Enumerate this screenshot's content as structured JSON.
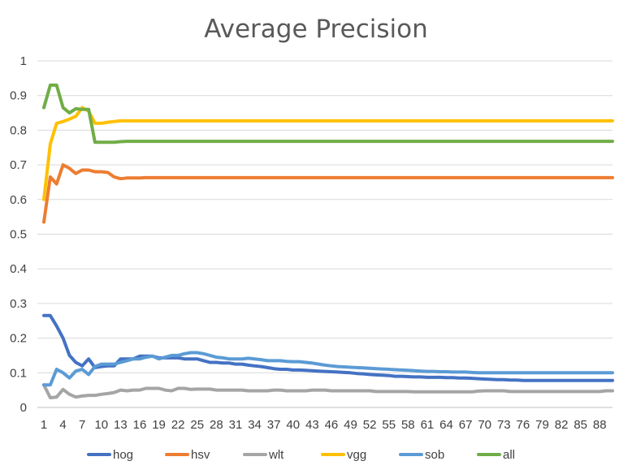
{
  "chart_data": {
    "type": "line",
    "title": "Average Precision",
    "xlabel": "",
    "ylabel": "",
    "ylim": [
      0,
      1
    ],
    "yticks": [
      "0",
      "0.1",
      "0.2",
      "0.3",
      "0.4",
      "0.5",
      "0.6",
      "0.7",
      "0.8",
      "0.9",
      "1"
    ],
    "x": [
      1,
      2,
      3,
      4,
      5,
      6,
      7,
      8,
      9,
      10,
      11,
      12,
      13,
      14,
      15,
      16,
      17,
      18,
      19,
      20,
      21,
      22,
      23,
      24,
      25,
      26,
      27,
      28,
      29,
      30,
      31,
      32,
      33,
      34,
      35,
      36,
      37,
      38,
      39,
      40,
      41,
      42,
      43,
      44,
      45,
      46,
      47,
      48,
      49,
      50,
      51,
      52,
      53,
      54,
      55,
      56,
      57,
      58,
      59,
      60,
      61,
      62,
      63,
      64,
      65,
      66,
      67,
      68,
      69,
      70,
      71,
      72,
      73,
      74,
      75,
      76,
      77,
      78,
      79,
      80,
      81,
      82,
      83,
      84,
      85,
      86,
      87,
      88,
      89,
      90
    ],
    "xtick_labels": [
      "1",
      "4",
      "7",
      "10",
      "13",
      "16",
      "19",
      "22",
      "25",
      "28",
      "31",
      "34",
      "37",
      "40",
      "43",
      "46",
      "49",
      "52",
      "55",
      "58",
      "61",
      "64",
      "67",
      "70",
      "73",
      "76",
      "79",
      "82",
      "85",
      "88"
    ],
    "grid": true,
    "legend_position": "bottom",
    "series": [
      {
        "name": "hog",
        "color": "#4472c4",
        "values": [
          0.265,
          0.265,
          0.235,
          0.2,
          0.15,
          0.13,
          0.12,
          0.14,
          0.115,
          0.118,
          0.12,
          0.12,
          0.14,
          0.14,
          0.14,
          0.148,
          0.148,
          0.148,
          0.143,
          0.143,
          0.143,
          0.143,
          0.14,
          0.14,
          0.14,
          0.135,
          0.13,
          0.13,
          0.128,
          0.128,
          0.125,
          0.125,
          0.122,
          0.12,
          0.118,
          0.115,
          0.112,
          0.11,
          0.11,
          0.108,
          0.108,
          0.107,
          0.106,
          0.105,
          0.104,
          0.103,
          0.102,
          0.101,
          0.1,
          0.098,
          0.097,
          0.095,
          0.094,
          0.093,
          0.092,
          0.09,
          0.09,
          0.089,
          0.088,
          0.088,
          0.087,
          0.087,
          0.087,
          0.086,
          0.086,
          0.085,
          0.085,
          0.084,
          0.083,
          0.082,
          0.081,
          0.08,
          0.08,
          0.079,
          0.079,
          0.078,
          0.078,
          0.078,
          0.078,
          0.078,
          0.078,
          0.078,
          0.078,
          0.078,
          0.078,
          0.078,
          0.078,
          0.078,
          0.078,
          0.078
        ]
      },
      {
        "name": "hsv",
        "color": "#ed7d31",
        "values": [
          0.535,
          0.665,
          0.645,
          0.7,
          0.69,
          0.675,
          0.685,
          0.685,
          0.68,
          0.68,
          0.678,
          0.665,
          0.66,
          0.662,
          0.662,
          0.662,
          0.663,
          0.663,
          0.663,
          0.663,
          0.663,
          0.663,
          0.663,
          0.663,
          0.663,
          0.663,
          0.663,
          0.663,
          0.663,
          0.663,
          0.663,
          0.663,
          0.663,
          0.663,
          0.663,
          0.663,
          0.663,
          0.663,
          0.663,
          0.663,
          0.663,
          0.663,
          0.663,
          0.663,
          0.663,
          0.663,
          0.663,
          0.663,
          0.663,
          0.663,
          0.663,
          0.663,
          0.663,
          0.663,
          0.663,
          0.663,
          0.663,
          0.663,
          0.663,
          0.663,
          0.663,
          0.663,
          0.663,
          0.663,
          0.663,
          0.663,
          0.663,
          0.663,
          0.663,
          0.663,
          0.663,
          0.663,
          0.663,
          0.663,
          0.663,
          0.663,
          0.663,
          0.663,
          0.663,
          0.663,
          0.663,
          0.663,
          0.663,
          0.663,
          0.663,
          0.663,
          0.663,
          0.663,
          0.663,
          0.663
        ]
      },
      {
        "name": "wlt",
        "color": "#a5a5a5",
        "values": [
          0.065,
          0.028,
          0.03,
          0.052,
          0.038,
          0.03,
          0.033,
          0.035,
          0.035,
          0.038,
          0.04,
          0.043,
          0.05,
          0.048,
          0.05,
          0.05,
          0.055,
          0.055,
          0.055,
          0.05,
          0.048,
          0.055,
          0.055,
          0.052,
          0.053,
          0.053,
          0.053,
          0.05,
          0.05,
          0.05,
          0.05,
          0.05,
          0.048,
          0.048,
          0.048,
          0.048,
          0.05,
          0.05,
          0.048,
          0.048,
          0.048,
          0.048,
          0.05,
          0.05,
          0.05,
          0.048,
          0.048,
          0.048,
          0.048,
          0.048,
          0.048,
          0.048,
          0.046,
          0.046,
          0.046,
          0.046,
          0.046,
          0.046,
          0.045,
          0.045,
          0.045,
          0.045,
          0.045,
          0.045,
          0.045,
          0.045,
          0.045,
          0.045,
          0.047,
          0.048,
          0.048,
          0.048,
          0.048,
          0.046,
          0.046,
          0.046,
          0.046,
          0.046,
          0.046,
          0.046,
          0.046,
          0.046,
          0.046,
          0.046,
          0.046,
          0.046,
          0.046,
          0.046,
          0.048,
          0.048
        ]
      },
      {
        "name": "vgg",
        "color": "#ffc000",
        "values": [
          0.6,
          0.76,
          0.82,
          0.825,
          0.832,
          0.84,
          0.865,
          0.855,
          0.82,
          0.82,
          0.823,
          0.825,
          0.827,
          0.827,
          0.827,
          0.827,
          0.827,
          0.827,
          0.827,
          0.827,
          0.827,
          0.827,
          0.827,
          0.827,
          0.827,
          0.827,
          0.827,
          0.827,
          0.827,
          0.827,
          0.827,
          0.827,
          0.827,
          0.827,
          0.827,
          0.827,
          0.827,
          0.827,
          0.827,
          0.827,
          0.827,
          0.827,
          0.827,
          0.827,
          0.827,
          0.827,
          0.827,
          0.827,
          0.827,
          0.827,
          0.827,
          0.827,
          0.827,
          0.827,
          0.827,
          0.827,
          0.827,
          0.827,
          0.827,
          0.827,
          0.827,
          0.827,
          0.827,
          0.827,
          0.827,
          0.827,
          0.827,
          0.827,
          0.827,
          0.827,
          0.827,
          0.827,
          0.827,
          0.827,
          0.827,
          0.827,
          0.827,
          0.827,
          0.827,
          0.827,
          0.827,
          0.827,
          0.827,
          0.827,
          0.827,
          0.827,
          0.827,
          0.827,
          0.827,
          0.827
        ]
      },
      {
        "name": "sob",
        "color": "#5b9bd5",
        "values": [
          0.065,
          0.065,
          0.11,
          0.1,
          0.085,
          0.105,
          0.11,
          0.095,
          0.118,
          0.125,
          0.125,
          0.125,
          0.13,
          0.135,
          0.14,
          0.14,
          0.145,
          0.148,
          0.14,
          0.145,
          0.15,
          0.15,
          0.155,
          0.158,
          0.158,
          0.155,
          0.15,
          0.145,
          0.143,
          0.14,
          0.14,
          0.14,
          0.142,
          0.14,
          0.138,
          0.135,
          0.135,
          0.135,
          0.133,
          0.132,
          0.132,
          0.13,
          0.128,
          0.125,
          0.122,
          0.12,
          0.118,
          0.117,
          0.116,
          0.115,
          0.114,
          0.113,
          0.112,
          0.111,
          0.11,
          0.109,
          0.108,
          0.107,
          0.106,
          0.105,
          0.104,
          0.104,
          0.103,
          0.103,
          0.102,
          0.102,
          0.102,
          0.101,
          0.1,
          0.1,
          0.1,
          0.1,
          0.1,
          0.1,
          0.1,
          0.1,
          0.1,
          0.1,
          0.1,
          0.1,
          0.1,
          0.1,
          0.1,
          0.1,
          0.1,
          0.1,
          0.1,
          0.1,
          0.1,
          0.1
        ]
      },
      {
        "name": "all",
        "color": "#70ad47",
        "values": [
          0.865,
          0.93,
          0.93,
          0.865,
          0.85,
          0.862,
          0.86,
          0.86,
          0.765,
          0.765,
          0.765,
          0.765,
          0.767,
          0.768,
          0.768,
          0.768,
          0.768,
          0.768,
          0.768,
          0.768,
          0.768,
          0.768,
          0.768,
          0.768,
          0.768,
          0.768,
          0.768,
          0.768,
          0.768,
          0.768,
          0.768,
          0.768,
          0.768,
          0.768,
          0.768,
          0.768,
          0.768,
          0.768,
          0.768,
          0.768,
          0.768,
          0.768,
          0.768,
          0.768,
          0.768,
          0.768,
          0.768,
          0.768,
          0.768,
          0.768,
          0.768,
          0.768,
          0.768,
          0.768,
          0.768,
          0.768,
          0.768,
          0.768,
          0.768,
          0.768,
          0.768,
          0.768,
          0.768,
          0.768,
          0.768,
          0.768,
          0.768,
          0.768,
          0.768,
          0.768,
          0.768,
          0.768,
          0.768,
          0.768,
          0.768,
          0.768,
          0.768,
          0.768,
          0.768,
          0.768,
          0.768,
          0.768,
          0.768,
          0.768,
          0.768,
          0.768,
          0.768,
          0.768,
          0.768,
          0.768
        ]
      }
    ]
  }
}
